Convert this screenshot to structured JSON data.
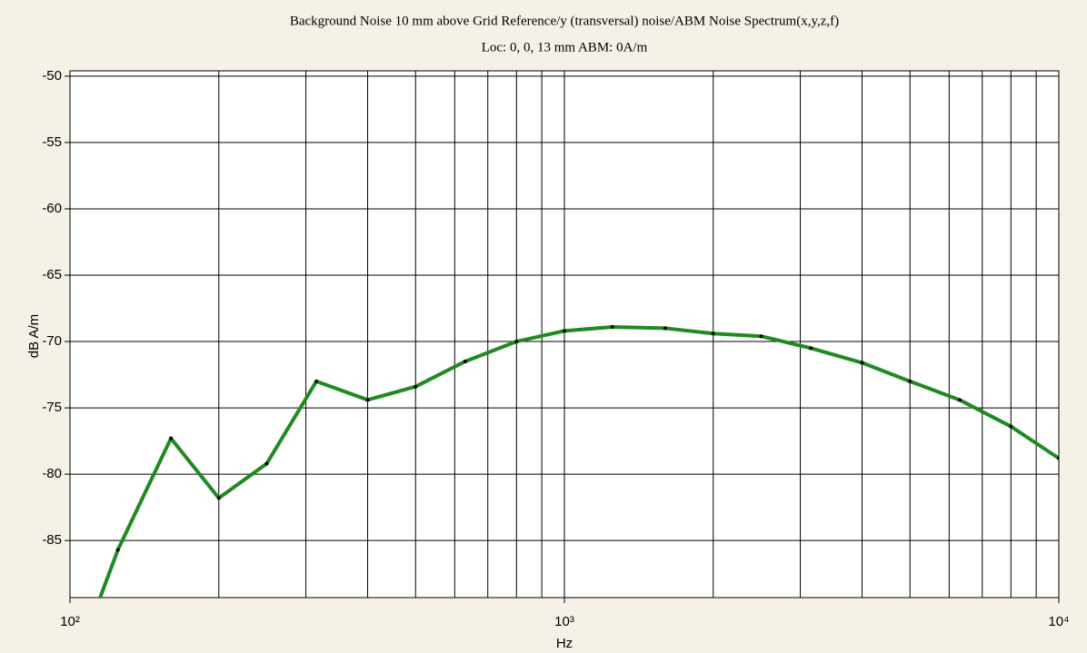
{
  "chart_data": {
    "type": "line",
    "title": "Background Noise 10 mm above Grid Reference/y (transversal) noise/ABM Noise Spectrum(x,y,z,f)",
    "subtitle": "Loc: 0, 0, 13 mm ABM: 0A/m",
    "x_label": "Hz",
    "y_label": "dB A/m",
    "x_scale": "log",
    "x": [
      100,
      125,
      160,
      200,
      250,
      315,
      400,
      500,
      630,
      800,
      1000,
      1250,
      1600,
      2000,
      2500,
      3150,
      4000,
      5000,
      6300,
      8000,
      10000
    ],
    "series": [
      {
        "name": "y (transversal) noise",
        "color": "#1f8a1f",
        "values": [
          -95.4,
          -85.7,
          -77.3,
          -81.8,
          -79.2,
          -73.0,
          -74.4,
          -73.4,
          -71.5,
          -70.0,
          -69.2,
          -68.9,
          -69.0,
          -69.4,
          -69.6,
          -70.5,
          -71.6,
          -73.0,
          -74.4,
          -76.4,
          -78.8
        ]
      }
    ],
    "xlim": [
      100,
      10000
    ],
    "ylim": [
      -89.3,
      -49.6
    ],
    "xticks": [
      {
        "value": 100,
        "label": "10²"
      },
      {
        "value": 1000,
        "label": "10³"
      },
      {
        "value": 10000,
        "label": "10⁴"
      }
    ],
    "xminor": [
      200,
      300,
      400,
      500,
      600,
      700,
      800,
      900,
      2000,
      3000,
      4000,
      5000,
      6000,
      7000,
      8000,
      9000
    ],
    "yticks": [
      -50,
      -55,
      -60,
      -65,
      -70,
      -75,
      -80,
      -85
    ],
    "grid": true,
    "markers": true
  }
}
